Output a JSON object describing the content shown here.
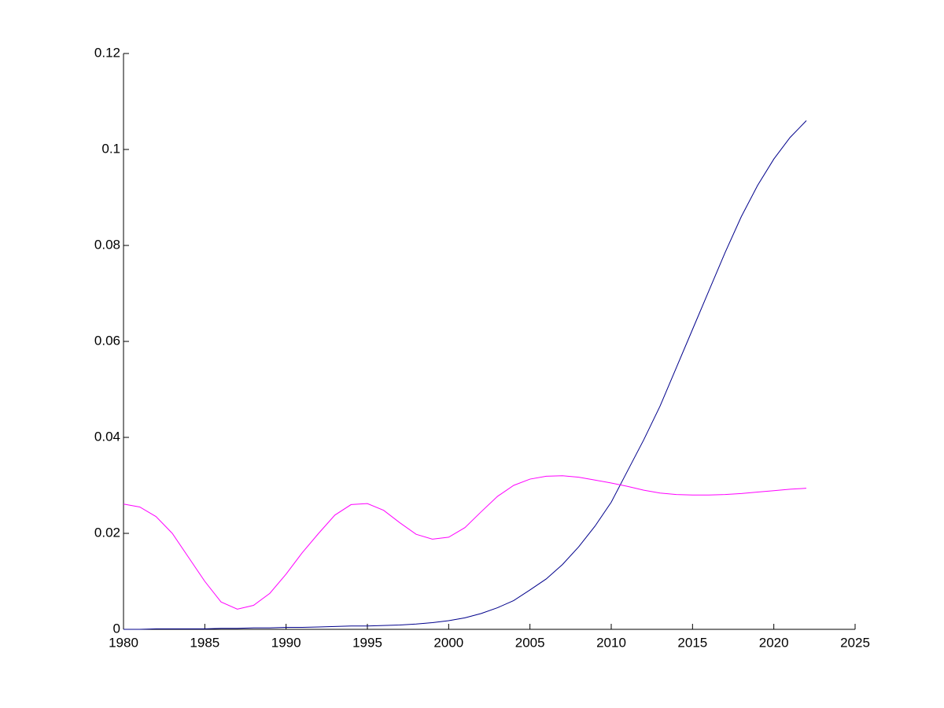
{
  "chart_data": {
    "type": "line",
    "x": [
      1980,
      1981,
      1982,
      1983,
      1984,
      1985,
      1986,
      1987,
      1988,
      1989,
      1990,
      1991,
      1992,
      1993,
      1994,
      1995,
      1996,
      1997,
      1998,
      1999,
      2000,
      2001,
      2002,
      2003,
      2004,
      2005,
      2006,
      2007,
      2008,
      2009,
      2010,
      2011,
      2012,
      2013,
      2014,
      2015,
      2016,
      2017,
      2018,
      2019,
      2020,
      2021,
      2022
    ],
    "series": [
      {
        "color": "#00008b",
        "values": [
          0,
          0,
          0.0001,
          0.0001,
          0.0001,
          0.0001,
          0.0002,
          0.0002,
          0.0003,
          0.0003,
          0.0004,
          0.0004,
          0.0005,
          0.0006,
          0.0007,
          0.0007,
          0.0008,
          0.0009,
          0.0011,
          0.0014,
          0.0018,
          0.0024,
          0.0033,
          0.0045,
          0.006,
          0.0082,
          0.0105,
          0.0135,
          0.0172,
          0.0215,
          0.0265,
          0.033,
          0.0395,
          0.0465,
          0.0545,
          0.0625,
          0.0705,
          0.0785,
          0.086,
          0.0925,
          0.098,
          0.1025,
          0.106
        ]
      },
      {
        "color": "#ff00ff",
        "values": [
          0.0261,
          0.0255,
          0.0235,
          0.02,
          0.015,
          0.01,
          0.0057,
          0.0042,
          0.005,
          0.0075,
          0.0115,
          0.016,
          0.02,
          0.0238,
          0.026,
          0.0262,
          0.0248,
          0.0222,
          0.0198,
          0.0188,
          0.0192,
          0.0212,
          0.0245,
          0.0277,
          0.03,
          0.0313,
          0.0319,
          0.032,
          0.0317,
          0.0311,
          0.0305,
          0.0298,
          0.029,
          0.0284,
          0.0281,
          0.028,
          0.028,
          0.0281,
          0.0283,
          0.0286,
          0.0289,
          0.0292,
          0.0294
        ]
      }
    ],
    "xlim": [
      1980,
      2025
    ],
    "xticks": [
      1980,
      1985,
      1990,
      1995,
      2000,
      2005,
      2010,
      2015,
      2020,
      2025
    ],
    "ylim": [
      0,
      0.12
    ],
    "yticks": [
      0,
      0.02,
      0.04,
      0.06,
      0.08,
      0.1,
      0.12
    ],
    "grid": false
  }
}
